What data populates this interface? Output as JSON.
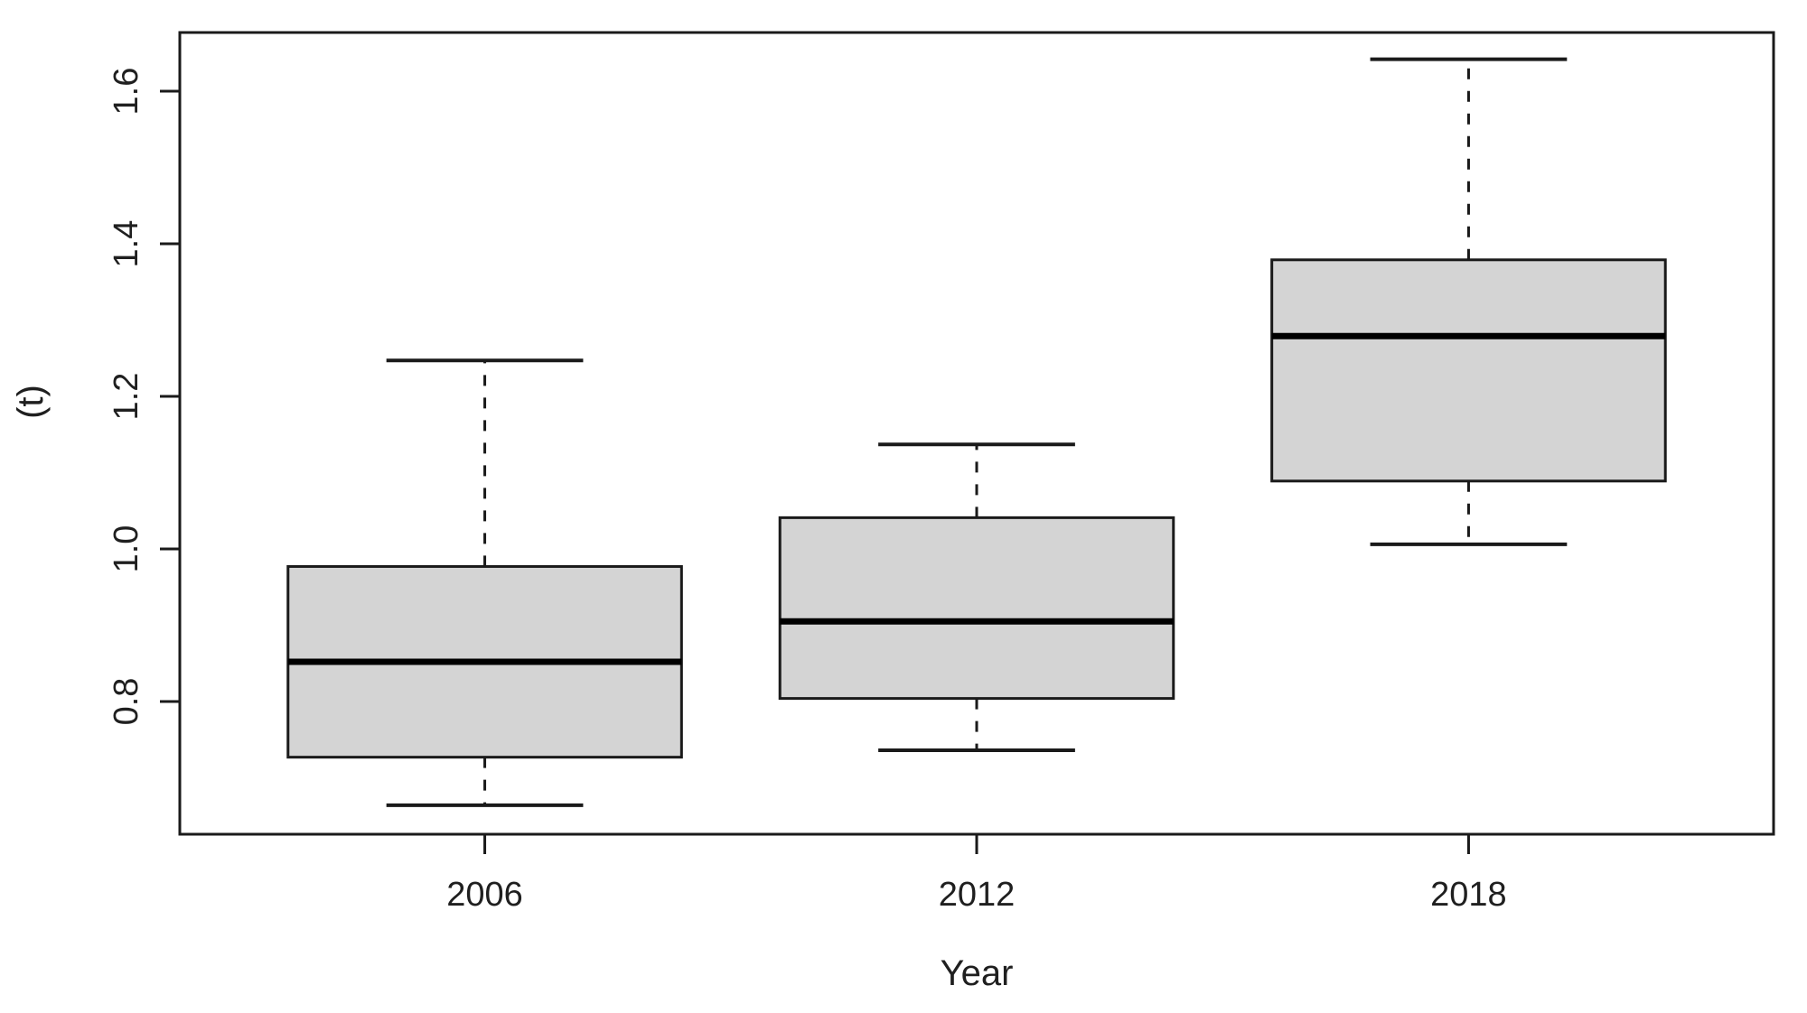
{
  "figure": {
    "background": "#ffffff"
  },
  "chart_data": {
    "type": "boxplot",
    "title": "",
    "xlabel": "Year",
    "ylabel": "(t)",
    "categories": [
      "2006",
      "2012",
      "2018"
    ],
    "series": [
      {
        "name": "2006",
        "whisker_low": 0.664,
        "q1": 0.727,
        "median": 0.852,
        "q3": 0.977,
        "whisker_high": 1.247
      },
      {
        "name": "2012",
        "whisker_low": 0.736,
        "q1": 0.804,
        "median": 0.905,
        "q3": 1.041,
        "whisker_high": 1.137
      },
      {
        "name": "2018",
        "whisker_low": 1.006,
        "q1": 1.089,
        "median": 1.279,
        "q3": 1.379,
        "whisker_high": 1.642
      }
    ],
    "y_ticks": [
      {
        "value": 0.8,
        "label": "0.8"
      },
      {
        "value": 1.0,
        "label": "1.0"
      },
      {
        "value": 1.2,
        "label": "1.2"
      },
      {
        "value": 1.4,
        "label": "1.4"
      },
      {
        "value": 1.6,
        "label": "1.6"
      }
    ],
    "ylim": [
      0.626,
      1.677
    ],
    "xlim": [
      0.38,
      3.62
    ],
    "x_positions": [
      1,
      2,
      3
    ],
    "box_width": 0.8,
    "cap_width": 0.4,
    "grid": false,
    "legend": false,
    "orientation": "vertical",
    "colors": {
      "box_fill": "#d4d4d4",
      "line": "#1a1a1a",
      "median": "#000000",
      "text": "#1f1f1f"
    }
  }
}
